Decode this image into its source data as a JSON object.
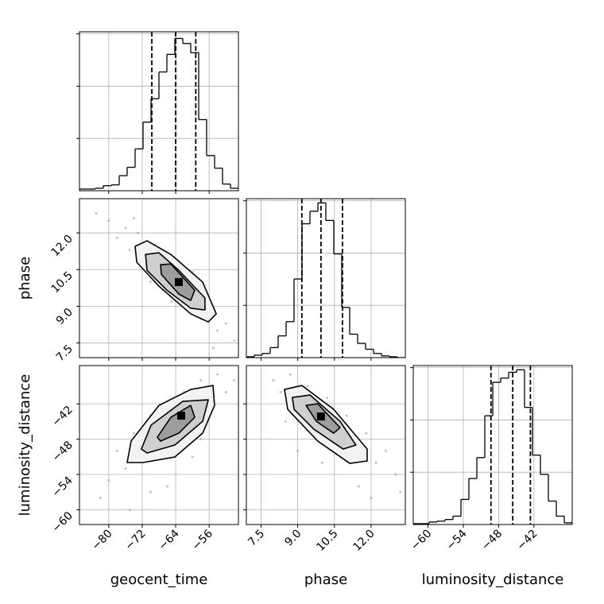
{
  "chart_data": {
    "type": "corner",
    "color": "#000000",
    "grid": true,
    "parameters": [
      {
        "name": "geocent_time",
        "lim": [
          -87,
          -49
        ],
        "ticks": [
          {
            "value": -80,
            "label": "−80"
          },
          {
            "value": -72,
            "label": "−72"
          },
          {
            "value": -64,
            "label": "−64"
          },
          {
            "value": -56,
            "label": "−56"
          }
        ]
      },
      {
        "name": "phase",
        "lim": [
          6.9,
          13.4
        ],
        "ticks": [
          7.5,
          {
            "value": 9,
            "label": "9.0"
          },
          10.5,
          {
            "value": 12,
            "label": "12.0"
          }
        ]
      },
      {
        "name": "luminosity_distance",
        "lim": [
          -62.5,
          -35.5
        ],
        "ticks": [
          {
            "value": -60,
            "label": "−60"
          },
          {
            "value": -54,
            "label": "−54"
          },
          {
            "value": -48,
            "label": "−48"
          },
          {
            "value": -42,
            "label": "−42"
          }
        ]
      }
    ],
    "histograms": [
      {
        "bins": [
          -87,
          -85.1,
          -83.2,
          -81.3,
          -79.4,
          -77.5,
          -75.6,
          -73.7,
          -71.8,
          -69.9,
          -68,
          -66.1,
          -64.2,
          -62.3,
          -60.4,
          -58.5,
          -56.6,
          -54.7,
          -52.8,
          -50.9,
          -49
        ],
        "values": [
          16,
          16,
          24,
          48,
          56,
          144,
          224,
          400,
          656,
          880,
          1136,
          1304,
          1456,
          1408,
          1320,
          680,
          336,
          216,
          64,
          24
        ],
        "ylim": [
          0,
          1520
        ],
        "yticks": [
          500,
          1000,
          1500
        ],
        "quantiles": [
          -69.7,
          -64.0,
          -59.2
        ]
      },
      {
        "bins": [
          6.9,
          7.225,
          7.55,
          7.875,
          8.2,
          8.525,
          8.85,
          9.175,
          9.5,
          9.825,
          10.15,
          10.475,
          10.8,
          11.125,
          11.45,
          11.775,
          12.1,
          12.425,
          12.75,
          13.075,
          13.4
        ],
        "values": [
          8,
          24,
          40,
          96,
          208,
          344,
          752,
          1280,
          1400,
          1480,
          1312,
          992,
          480,
          224,
          136,
          80,
          40,
          16,
          8,
          0
        ],
        "ylim": [
          0,
          1520
        ],
        "yticks": [
          500,
          1000,
          1500
        ],
        "quantiles": [
          9.17,
          9.95,
          10.83
        ]
      },
      {
        "bins": [
          -62.5,
          -61.15,
          -59.8,
          -58.45,
          -57.1,
          -55.75,
          -54.4,
          -53.05,
          -51.7,
          -50.35,
          -49,
          -47.65,
          -46.3,
          -44.95,
          -43.6,
          -42.25,
          -40.9,
          -39.55,
          -38.2,
          -36.85,
          -35.5
        ],
        "values": [
          8,
          8,
          24,
          32,
          48,
          80,
          240,
          440,
          640,
          1040,
          1360,
          1400,
          1456,
          1480,
          1120,
          664,
          480,
          224,
          80,
          16
        ],
        "ylim": [
          0,
          1520
        ],
        "yticks": [
          500,
          1000,
          1500
        ],
        "quantiles": [
          -49.3,
          -45.6,
          -42.6
        ]
      }
    ],
    "pairs": [
      {
        "points_x": [
          -80,
          -78,
          -76,
          -75,
          -73,
          -71,
          -69,
          -67,
          -66,
          -64,
          -62,
          -61,
          -59,
          -58,
          -56,
          -54,
          -52,
          -50,
          -83,
          -70,
          -60,
          -65,
          -74,
          -55
        ],
        "points_y": [
          12.5,
          11.8,
          12.2,
          11.3,
          12.0,
          10.9,
          11.5,
          10.2,
          10.8,
          9.6,
          10.1,
          9.0,
          9.4,
          8.5,
          8.9,
          8.0,
          8.3,
          7.6,
          12.8,
          10.0,
          10.4,
          9.2,
          12.6,
          7.3
        ],
        "contours": [
          {
            "x": [
              -73.7,
              -70.85,
              -65.15,
              -57.55,
              -54.3,
              -56.2,
              -60.4,
              -68,
              -73.3
            ],
            "y": [
              11.45,
              11.68,
              11.12,
              9.99,
              8.69,
              8.36,
              8.69,
              9.82,
              10.8
            ]
          },
          {
            "x": [
              -71.2,
              -68,
              -63.25,
              -57,
              -57,
              -60.4,
              -66.1,
              -70.85
            ],
            "y": [
              11.12,
              11.19,
              10.47,
              9.34,
              8.85,
              8.92,
              9.66,
              10.47
            ]
          },
          {
            "x": [
              -67.6,
              -65.15,
              -59.45,
              -60.4,
              -63.25,
              -67.43
            ],
            "y": [
              10.7,
              10.73,
              9.66,
              9.24,
              9.5,
              10.31
            ]
          }
        ],
        "mode": [
          -63.25,
          9.99
        ]
      },
      {
        "points_x": [
          -80,
          -78,
          -76,
          -74,
          -72,
          -70,
          -68,
          -66,
          -64,
          -62,
          -60,
          -58,
          -56,
          -54,
          -52,
          -50,
          -82,
          -66,
          -60,
          -70,
          -58,
          -75
        ],
        "points_y": [
          -55,
          -50,
          -53,
          -47,
          -51,
          -44,
          -49,
          -42,
          -46,
          -40,
          -45,
          -38,
          -42,
          -37,
          -40,
          -38,
          -58,
          -56,
          -51,
          -57,
          -48,
          -60
        ],
        "contours": [
          {
            "x": [
              -75.6,
              -74.65,
              -68,
              -60.4,
              -55.08,
              -54.7,
              -57.55,
              -64.2,
              -71.8
            ],
            "y": [
              -51.97,
              -48.33,
              -42.26,
              -39.56,
              -38.88,
              -42.26,
              -46.98,
              -51.03,
              -51.97
            ]
          },
          {
            "x": [
              -72.2,
              -69.9,
              -62.3,
              -56.2,
              -57.55,
              -64.2,
              -70.85
            ],
            "y": [
              -49.68,
              -45.63,
              -41.58,
              -41.31,
              -44.96,
              -49,
              -50.35
            ]
          },
          {
            "x": [
              -68.38,
              -65.15,
              -60.4,
              -59.45,
              -63.25,
              -67.62
            ],
            "y": [
              -47.66,
              -44.28,
              -42.26,
              -44.28,
              -46.98,
              -48.33
            ]
          }
        ],
        "mode": [
          -62.68,
          -44.01
        ]
      },
      {
        "points_x": [
          8.0,
          8.3,
          8.7,
          9.0,
          9.4,
          9.8,
          10.2,
          10.6,
          11.0,
          11.4,
          11.8,
          12.2,
          12.6,
          13.0,
          10.0,
          11.5,
          9.0,
          12.0,
          8.5,
          13.2
        ],
        "points_y": [
          -38,
          -40,
          -37,
          -42,
          -39,
          -44,
          -41,
          -47,
          -44,
          -50,
          -47,
          -52,
          -50,
          -54,
          -52,
          -56,
          -50,
          -58,
          -45,
          -57
        ],
        "contours": [
          {
            "x": [
              8.46,
              9.17,
              10.47,
              11.84,
              11.84,
              11.13,
              9.82,
              8.59
            ],
            "y": [
              -39.56,
              -38.88,
              -42.93,
              -49.68,
              -51.7,
              -52.11,
              -48.33,
              -42.93
            ]
          },
          {
            "x": [
              8.78,
              9.5,
              10.73,
              11.38,
              10.86,
              9.66,
              8.85
            ],
            "y": [
              -40.91,
              -40.5,
              -44.96,
              -49,
              -49.68,
              -46.31,
              -42.93
            ]
          },
          {
            "x": [
              9.34,
              9.82,
              10.73,
              10.47,
              9.76
            ],
            "y": [
              -42.26,
              -41.99,
              -46.04,
              -46.98,
              -44.96
            ]
          }
        ],
        "mode": [
          9.95,
          -44.15
        ]
      }
    ]
  }
}
